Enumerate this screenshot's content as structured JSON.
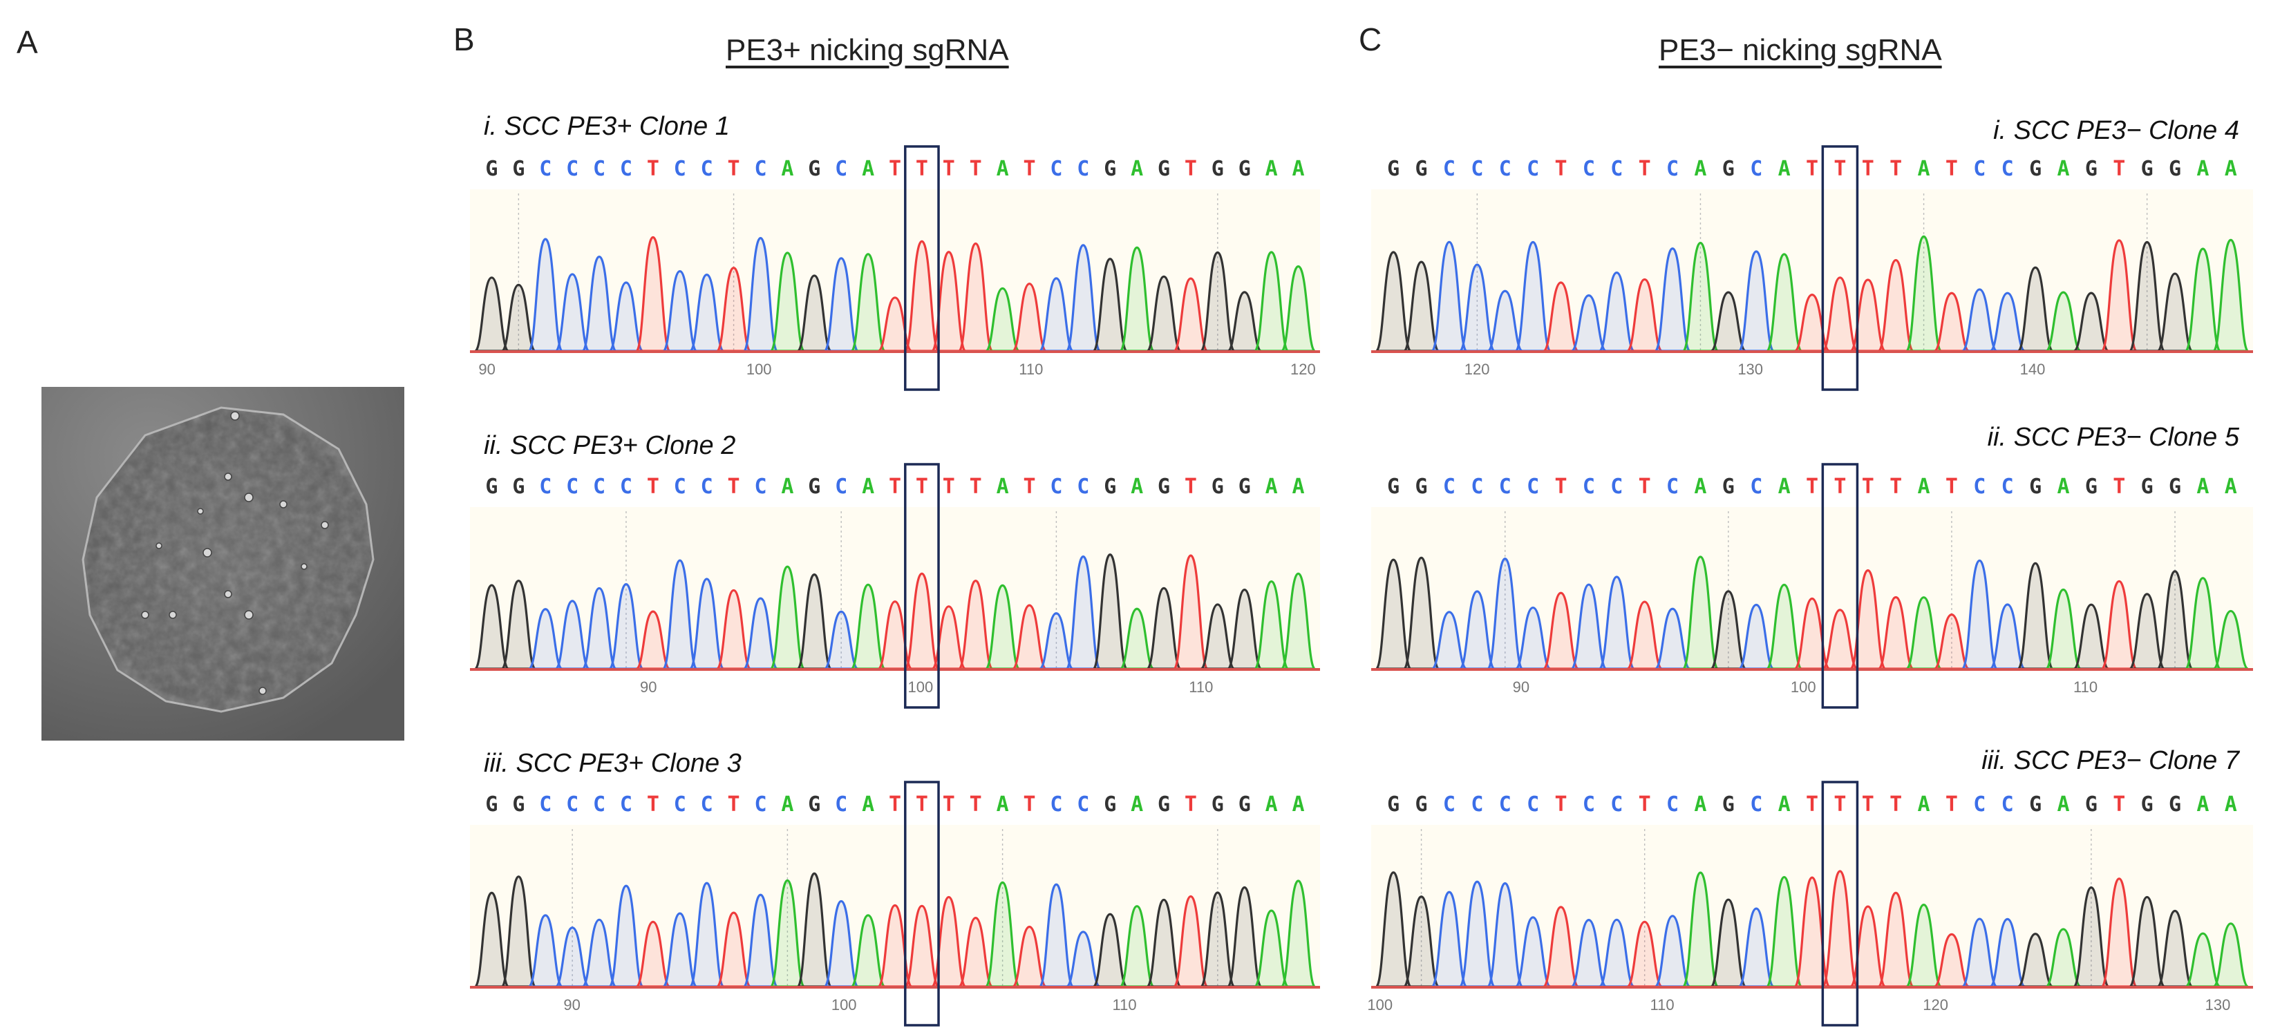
{
  "panels": {
    "a": {
      "letter": "A"
    },
    "b": {
      "letter": "B",
      "heading": "PE3+ nicking sgRNA"
    },
    "c": {
      "letter": "C",
      "heading": "PE3− nicking sgRNA"
    }
  },
  "sequence": "GGCCCCTCCTCAGCATTTTATCCGAGTGGAA",
  "highlight_index": 16,
  "base_colors": {
    "A": "#2fbf2f",
    "C": "#3b6ee8",
    "G": "#333333",
    "T": "#ee3b3b"
  },
  "box_color": "#1c2a55",
  "baseline_color": "#d9534f",
  "traces": [
    {
      "id": "b1",
      "title": "i. SCC PE3+ Clone 1",
      "ticks": [
        "90",
        "100",
        "110",
        "120"
      ]
    },
    {
      "id": "b2",
      "title": "ii. SCC PE3+ Clone 2",
      "ticks": [
        "90",
        "100",
        "110"
      ]
    },
    {
      "id": "b3",
      "title": "iii. SCC PE3+ Clone 3",
      "ticks": [
        "90",
        "100",
        "110"
      ]
    },
    {
      "id": "c1",
      "title": "i. SCC PE3− Clone 4",
      "ticks": [
        "120",
        "130",
        "140"
      ]
    },
    {
      "id": "c2",
      "title": "ii. SCC PE3− Clone 5",
      "ticks": [
        "90",
        "100",
        "110"
      ]
    },
    {
      "id": "c3",
      "title": "iii. SCC PE3− Clone 7",
      "ticks": [
        "100",
        "110",
        "120",
        "130"
      ]
    }
  ]
}
